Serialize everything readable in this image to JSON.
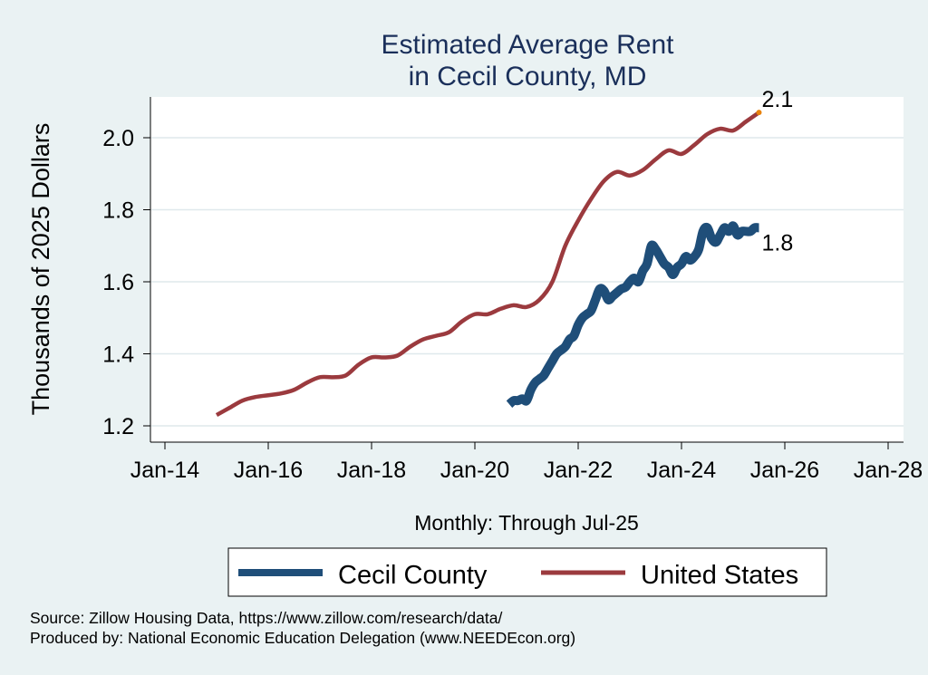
{
  "chart_data": {
    "type": "line",
    "title_lines": [
      "Estimated Average Rent",
      "in Cecil County, MD"
    ],
    "xlabel": "Monthly: Through Jul-25",
    "ylabel": "Thousands of 2025 Dollars",
    "x_ticks": [
      "Jan-14",
      "Jan-16",
      "Jan-18",
      "Jan-20",
      "Jan-22",
      "Jan-24",
      "Jan-26",
      "Jan-28"
    ],
    "y_ticks": [
      "1.2",
      "1.4",
      "1.6",
      "1.8",
      "2.0"
    ],
    "ylim": [
      1.19,
      2.12
    ],
    "xlim": [
      "Jan-14",
      "Jan-28"
    ],
    "grid": true,
    "legend_position": "bottom",
    "series": [
      {
        "name": "Cecil County",
        "color": "#1f4e79",
        "end_label": "1.8",
        "points": [
          [
            "Sep-20",
            1.26
          ],
          [
            "Oct-20",
            1.27
          ],
          [
            "Nov-20",
            1.27
          ],
          [
            "Dec-20",
            1.275
          ],
          [
            "Jan-21",
            1.27
          ],
          [
            "Feb-21",
            1.3
          ],
          [
            "Mar-21",
            1.32
          ],
          [
            "Apr-21",
            1.33
          ],
          [
            "May-21",
            1.34
          ],
          [
            "Jun-21",
            1.36
          ],
          [
            "Jul-21",
            1.38
          ],
          [
            "Aug-21",
            1.4
          ],
          [
            "Sep-21",
            1.41
          ],
          [
            "Oct-21",
            1.42
          ],
          [
            "Nov-21",
            1.44
          ],
          [
            "Dec-21",
            1.45
          ],
          [
            "Jan-22",
            1.48
          ],
          [
            "Feb-22",
            1.5
          ],
          [
            "Mar-22",
            1.51
          ],
          [
            "Apr-22",
            1.52
          ],
          [
            "May-22",
            1.55
          ],
          [
            "Jun-22",
            1.58
          ],
          [
            "Jul-22",
            1.575
          ],
          [
            "Aug-22",
            1.55
          ],
          [
            "Sep-22",
            1.56
          ],
          [
            "Oct-22",
            1.57
          ],
          [
            "Nov-22",
            1.58
          ],
          [
            "Dec-22",
            1.585
          ],
          [
            "Jan-23",
            1.6
          ],
          [
            "Feb-23",
            1.61
          ],
          [
            "Mar-23",
            1.6
          ],
          [
            "Apr-23",
            1.63
          ],
          [
            "May-23",
            1.65
          ],
          [
            "Jun-23",
            1.7
          ],
          [
            "Jul-23",
            1.69
          ],
          [
            "Aug-23",
            1.67
          ],
          [
            "Sep-23",
            1.65
          ],
          [
            "Oct-23",
            1.64
          ],
          [
            "Nov-23",
            1.62
          ],
          [
            "Dec-23",
            1.64
          ],
          [
            "Jan-24",
            1.65
          ],
          [
            "Feb-24",
            1.67
          ],
          [
            "Mar-24",
            1.66
          ],
          [
            "Apr-24",
            1.67
          ],
          [
            "May-24",
            1.69
          ],
          [
            "Jun-24",
            1.74
          ],
          [
            "Jul-24",
            1.75
          ],
          [
            "Aug-24",
            1.72
          ],
          [
            "Sep-24",
            1.71
          ],
          [
            "Oct-24",
            1.73
          ],
          [
            "Nov-24",
            1.75
          ],
          [
            "Dec-24",
            1.74
          ],
          [
            "Jan-25",
            1.755
          ],
          [
            "Feb-25",
            1.73
          ],
          [
            "Mar-25",
            1.74
          ],
          [
            "Apr-25",
            1.74
          ],
          [
            "May-25",
            1.74
          ],
          [
            "Jun-25",
            1.75
          ],
          [
            "Jul-25",
            1.75
          ]
        ]
      },
      {
        "name": "United States",
        "color": "#9b3a3e",
        "end_label": "2.1",
        "end_marker_color": "#e8820c",
        "points": [
          [
            "Jan-15",
            1.23
          ],
          [
            "Apr-15",
            1.25
          ],
          [
            "Jul-15",
            1.27
          ],
          [
            "Oct-15",
            1.28
          ],
          [
            "Jan-16",
            1.285
          ],
          [
            "Apr-16",
            1.29
          ],
          [
            "Jul-16",
            1.3
          ],
          [
            "Oct-16",
            1.32
          ],
          [
            "Jan-17",
            1.335
          ],
          [
            "Apr-17",
            1.335
          ],
          [
            "Jul-17",
            1.34
          ],
          [
            "Oct-17",
            1.37
          ],
          [
            "Jan-18",
            1.39
          ],
          [
            "Apr-18",
            1.39
          ],
          [
            "Jul-18",
            1.395
          ],
          [
            "Oct-18",
            1.42
          ],
          [
            "Jan-19",
            1.44
          ],
          [
            "Apr-19",
            1.45
          ],
          [
            "Jul-19",
            1.46
          ],
          [
            "Oct-19",
            1.49
          ],
          [
            "Jan-20",
            1.51
          ],
          [
            "Apr-20",
            1.51
          ],
          [
            "Jul-20",
            1.525
          ],
          [
            "Oct-20",
            1.535
          ],
          [
            "Jan-21",
            1.53
          ],
          [
            "Apr-21",
            1.55
          ],
          [
            "Jul-21",
            1.6
          ],
          [
            "Oct-21",
            1.7
          ],
          [
            "Jan-22",
            1.77
          ],
          [
            "Apr-22",
            1.83
          ],
          [
            "Jul-22",
            1.88
          ],
          [
            "Oct-22",
            1.905
          ],
          [
            "Jan-23",
            1.895
          ],
          [
            "Apr-23",
            1.91
          ],
          [
            "Jul-23",
            1.94
          ],
          [
            "Oct-23",
            1.965
          ],
          [
            "Jan-24",
            1.955
          ],
          [
            "Apr-24",
            1.98
          ],
          [
            "Jul-24",
            2.01
          ],
          [
            "Oct-24",
            2.025
          ],
          [
            "Jan-25",
            2.02
          ],
          [
            "Apr-25",
            2.045
          ],
          [
            "Jul-25",
            2.07
          ]
        ]
      }
    ]
  },
  "source_line": "Source: Zillow Housing Data, https://www.zillow.com/research/data/",
  "producer_line": "Produced by: National Economic Education Delegation (www.NEEDEcon.org)"
}
